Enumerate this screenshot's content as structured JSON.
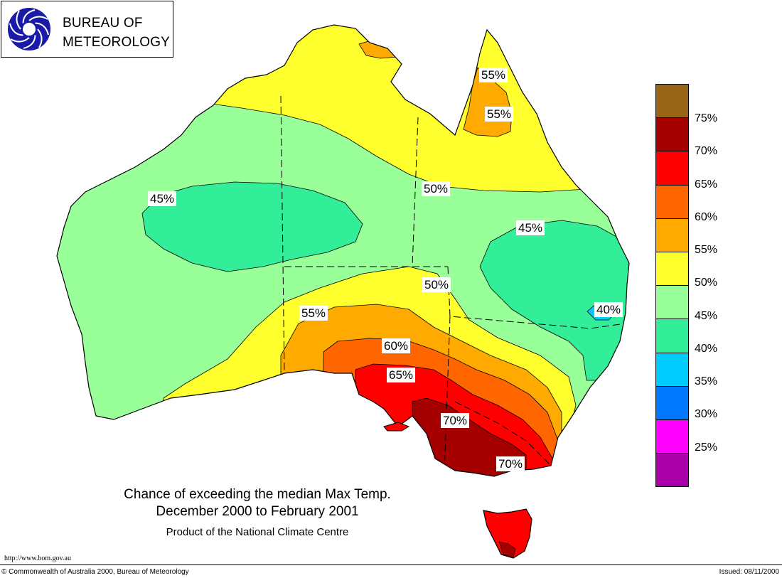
{
  "logo": {
    "line1": "BUREAU OF",
    "line2": "METEOROLOGY",
    "icon": "bom-spiral-logo-icon"
  },
  "map": {
    "region": "Australia",
    "contour_labels": [
      {
        "id": "cape-york-upper",
        "text": "55%"
      },
      {
        "id": "cape-york-lower",
        "text": "55%"
      },
      {
        "id": "wa-interior",
        "text": "45%"
      },
      {
        "id": "nt-qld-north",
        "text": "50%"
      },
      {
        "id": "qld-east",
        "text": "45%"
      },
      {
        "id": "central-south",
        "text": "50%"
      },
      {
        "id": "se-qld",
        "text": "40%"
      },
      {
        "id": "sa-west",
        "text": "55%"
      },
      {
        "id": "sa-mid",
        "text": "60%"
      },
      {
        "id": "sa-gulf",
        "text": "65%"
      },
      {
        "id": "vic-west",
        "text": "70%"
      },
      {
        "id": "vic-south",
        "text": "70%"
      }
    ]
  },
  "legend": {
    "colors": [
      "#996619",
      "#a50000",
      "#ff0000",
      "#ff6600",
      "#ffaa00",
      "#ffff2e",
      "#99ff99",
      "#33ee99",
      "#00ccff",
      "#0077ff",
      "#ff00ff",
      "#aa00aa"
    ],
    "labels": [
      "75%",
      "70%",
      "65%",
      "60%",
      "55%",
      "50%",
      "45%",
      "40%",
      "35%",
      "30%",
      "25%"
    ]
  },
  "caption": {
    "title": "Chance of exceeding the median Max Temp.",
    "period": "December 2000 to February 2001",
    "product": "Product of the National Climate Centre"
  },
  "footer": {
    "url": "http://www.bom.gov.au",
    "copyright": "© Commonwealth of Australia 2000, Bureau of Meteorology",
    "issued": "Issued: 08/11/2000"
  }
}
